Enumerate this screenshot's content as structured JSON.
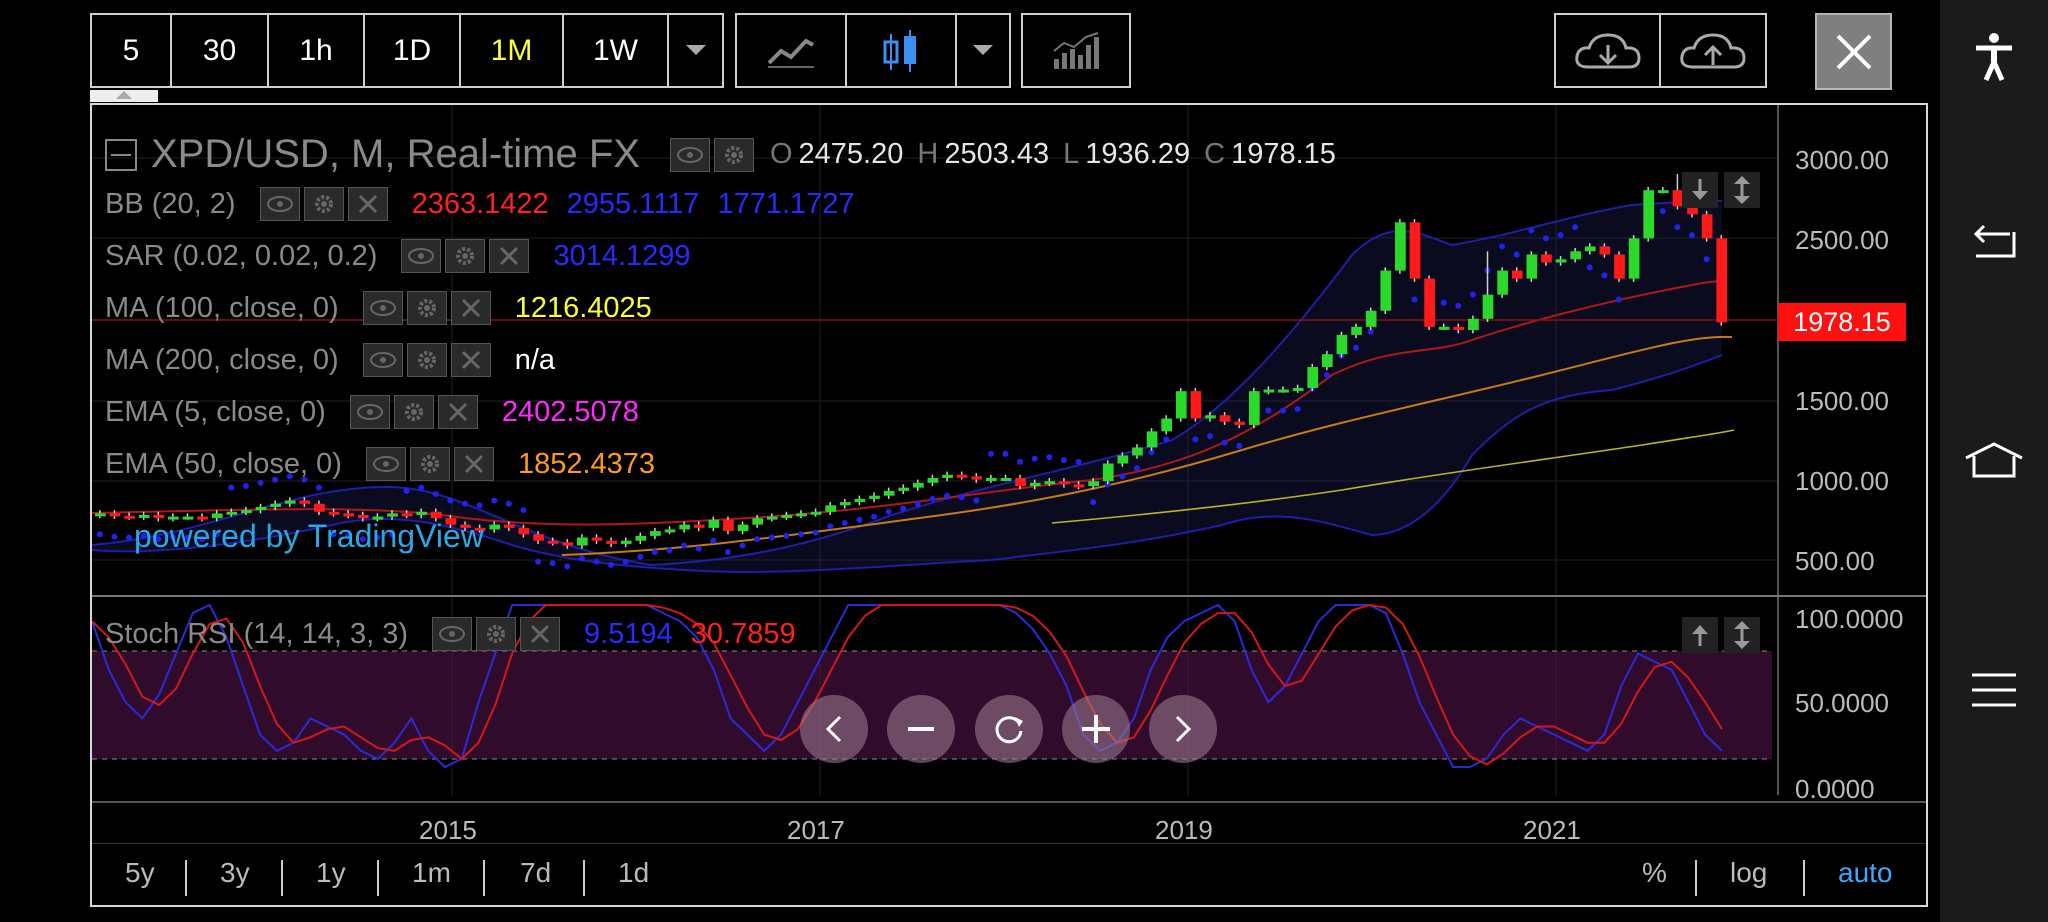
{
  "toolbar": {
    "intervals": [
      "5",
      "30",
      "1h",
      "1D",
      "1M",
      "1W"
    ],
    "active_interval": "1M"
  },
  "chart": {
    "symbol_title": "XPD/USD, M, Real-time FX",
    "ohlc": {
      "o_label": "O",
      "o": "2475.20",
      "h_label": "H",
      "h": "2503.43",
      "l_label": "L",
      "l": "1936.29",
      "c_label": "C",
      "c": "1978.15"
    },
    "price_tag": "1978.15",
    "watermark": "powered by TradingView",
    "indicators": [
      {
        "name": "BB (20, 2)",
        "values": [
          "2363.1422",
          "2955.1117",
          "1771.1727"
        ],
        "colors": [
          "#ff2020",
          "#2a2aff",
          "#2a2aff"
        ]
      },
      {
        "name": "SAR (0.02, 0.02, 0.2)",
        "values": [
          "3014.1299"
        ],
        "colors": [
          "#2a2aff"
        ]
      },
      {
        "name": "MA (100, close, 0)",
        "values": [
          "1216.4025"
        ],
        "colors": [
          "#ffff2a"
        ]
      },
      {
        "name": "MA (200, close, 0)",
        "values": [
          "n/a"
        ],
        "colors": [
          "#ffffff"
        ]
      },
      {
        "name": "EMA (5, close, 0)",
        "values": [
          "2402.5078"
        ],
        "colors": [
          "#ff2aff"
        ]
      },
      {
        "name": "EMA (50, close, 0)",
        "values": [
          "1852.4373"
        ],
        "colors": [
          "#ff9a1a"
        ]
      }
    ],
    "price_axis": [
      "3000.00",
      "2500.00",
      "1500.00",
      "1000.00",
      "500.00"
    ],
    "stoch": {
      "name": "Stoch RSI (14, 14, 3, 3)",
      "k": "9.5194",
      "d": "30.7859"
    },
    "stoch_axis": [
      "100.0000",
      "50.0000",
      "0.0000"
    ],
    "time_axis": [
      "2015",
      "2017",
      "2019",
      "2021"
    ]
  },
  "ranges": [
    "5y",
    "3y",
    "1y",
    "1m",
    "7d",
    "1d"
  ],
  "scale_opts": [
    "%",
    "log",
    "auto"
  ],
  "colors": {
    "up": "#2bd92b",
    "down": "#ff1a1a",
    "accent": "#ffff3a",
    "auto": "#3aaaff"
  }
}
